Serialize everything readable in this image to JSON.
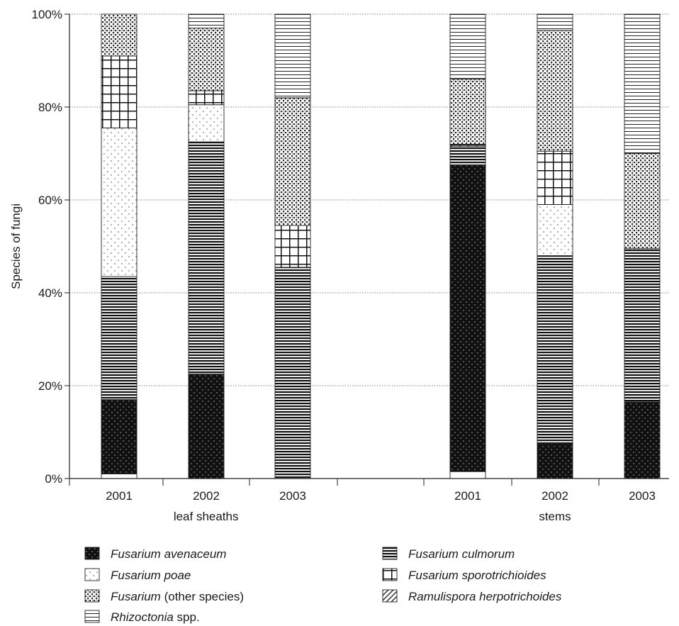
{
  "chart_data": {
    "type": "bar",
    "stacked": true,
    "ylabel": "Species of fungi",
    "ylim": [
      0,
      100
    ],
    "yticks": [
      "0%",
      "20%",
      "40%",
      "60%",
      "80%",
      "100%"
    ],
    "grid": "horizontal dotted",
    "categories": [
      "2001",
      "2002",
      "2003",
      "2001",
      "2002",
      "2003"
    ],
    "groups": [
      {
        "label": "leaf sheaths",
        "indices": [
          0,
          1,
          2
        ]
      },
      {
        "label": "stems",
        "indices": [
          3,
          4,
          5
        ]
      }
    ],
    "series": [
      {
        "name": "Rhizoctonia spp.",
        "italic": "Rhizoctonia",
        "rest": " spp.",
        "pattern": "white",
        "order": 0,
        "values": [
          1,
          0,
          0,
          1.5,
          0,
          0
        ]
      },
      {
        "name": "Fusarium avenaceum",
        "italic": "Fusarium avenaceum",
        "rest": "",
        "pattern": "dark",
        "values": [
          16,
          22.5,
          0,
          66,
          7.5,
          16.5
        ]
      },
      {
        "name": "Fusarium culmorum",
        "italic": "Fusarium culmorum",
        "rest": "",
        "pattern": "hstripe",
        "values": [
          26.5,
          50,
          45.5,
          4,
          40.5,
          33
        ]
      },
      {
        "name": "Fusarium poae",
        "italic": "Fusarium poae",
        "rest": "",
        "pattern": "dots",
        "values": [
          32,
          8,
          0,
          0,
          11,
          0
        ]
      },
      {
        "name": "Fusarium sporotrichioides",
        "italic": "Fusarium sporotrichioides",
        "rest": "",
        "pattern": "grid",
        "values": [
          15.5,
          3,
          9,
          0.5,
          11.5,
          0
        ]
      },
      {
        "name": "Fusarium (other species)",
        "italic": "Fusarium",
        "rest": " (other species)",
        "pattern": "speckle",
        "values": [
          9,
          13.5,
          27.5,
          14,
          26,
          20.5
        ]
      },
      {
        "name": "Rhizoctonia spp. (top)",
        "pattern": "fineHstripe",
        "legend": false,
        "values": [
          0,
          3,
          18,
          14,
          3.5,
          30
        ]
      }
    ],
    "legend": [
      {
        "italic": "Fusarium avenaceum",
        "rest": "",
        "pattern": "dark",
        "col": 0,
        "row": 0
      },
      {
        "italic": "Fusarium culmorum",
        "rest": "",
        "pattern": "hstripe",
        "col": 1,
        "row": 0
      },
      {
        "italic": "Fusarium poae",
        "rest": "",
        "pattern": "dots",
        "col": 0,
        "row": 1
      },
      {
        "italic": "Fusarium sporotrichioides",
        "rest": "",
        "pattern": "grid",
        "col": 1,
        "row": 1
      },
      {
        "italic": "Fusarium",
        "rest": " (other species)",
        "pattern": "speckle",
        "col": 0,
        "row": 2
      },
      {
        "italic": "Ramulispora herpotrichoides",
        "rest": "",
        "pattern": "diag",
        "col": 1,
        "row": 2
      },
      {
        "italic": "Rhizoctonia",
        "rest": " spp.",
        "pattern": "fineHstripe",
        "col": 0,
        "row": 3
      }
    ]
  }
}
